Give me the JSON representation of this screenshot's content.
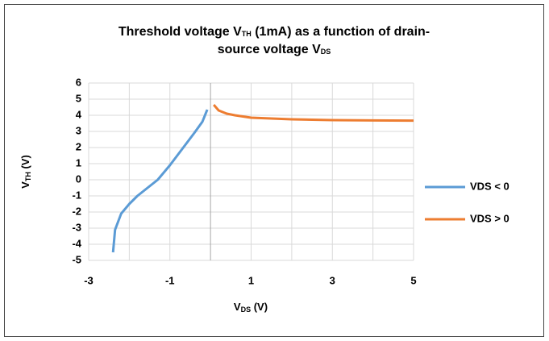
{
  "chart_data": {
    "type": "line",
    "title": [
      [
        "Threshold voltage V",
        "TH",
        " (1mA) as a function of drain-"
      ],
      [
        "source voltage V",
        "DS"
      ]
    ],
    "x_label": [
      "V",
      "DS",
      " (V)"
    ],
    "y_label": [
      "V",
      "TH",
      " (V)"
    ],
    "xlim": [
      -3,
      5
    ],
    "xticks": [
      -3,
      -1,
      1,
      3,
      5
    ],
    "x_grid": [
      -3,
      -2,
      -1,
      0,
      1,
      2,
      3,
      4,
      5
    ],
    "ylim": [
      -5,
      6
    ],
    "yticks": [
      -5,
      -4,
      -3,
      -2,
      -1,
      0,
      1,
      2,
      3,
      4,
      5,
      6
    ],
    "grid": true,
    "legend": "right",
    "series": [
      {
        "name": "VDS < 0",
        "color": "#5b9bd5",
        "x": [
          -2.4,
          -2.35,
          -2.2,
          -2.0,
          -1.8,
          -1.6,
          -1.45,
          -1.3,
          -1.0,
          -0.7,
          -0.4,
          -0.2,
          -0.08
        ],
        "values": [
          -4.5,
          -3.1,
          -2.1,
          -1.5,
          -1.0,
          -0.6,
          -0.3,
          0,
          0.9,
          1.9,
          2.9,
          3.6,
          4.35
        ]
      },
      {
        "name": "VDS > 0",
        "color": "#ed7d31",
        "x": [
          0.08,
          0.2,
          0.4,
          0.6,
          1,
          2,
          3,
          4,
          5
        ],
        "values": [
          4.65,
          4.3,
          4.1,
          4.0,
          3.85,
          3.75,
          3.7,
          3.68,
          3.67
        ]
      }
    ]
  }
}
